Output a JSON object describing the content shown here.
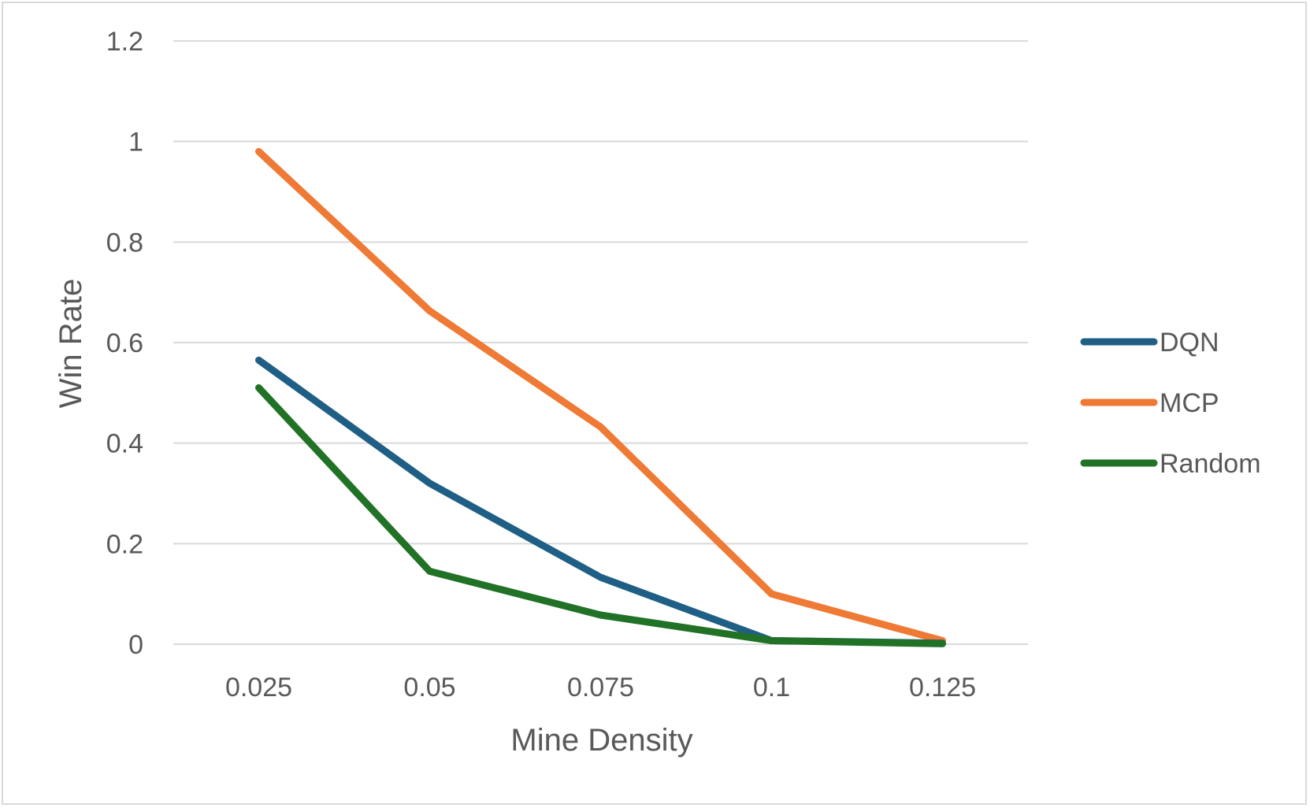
{
  "chart_data": {
    "type": "line",
    "title": "",
    "xlabel": "Mine Density",
    "ylabel": "Win Rate",
    "categories": [
      "0.025",
      "0.05",
      "0.075",
      "0.1",
      "0.125"
    ],
    "ylim": [
      0,
      1.2
    ],
    "yticks": [
      "0",
      "0.2",
      "0.4",
      "0.6",
      "0.8",
      "1",
      "1.2"
    ],
    "grid": "horizontal",
    "legend_position": "right",
    "series": [
      {
        "name": "DQN",
        "color": "#1f5f85",
        "values": [
          0.565,
          0.32,
          0.133,
          0.007,
          0.002
        ]
      },
      {
        "name": "MCP",
        "color": "#ee7a35",
        "values": [
          0.98,
          0.663,
          0.432,
          0.1,
          0.007
        ]
      },
      {
        "name": "Random",
        "color": "#217226",
        "values": [
          0.51,
          0.145,
          0.058,
          0.007,
          0.001
        ]
      }
    ]
  }
}
